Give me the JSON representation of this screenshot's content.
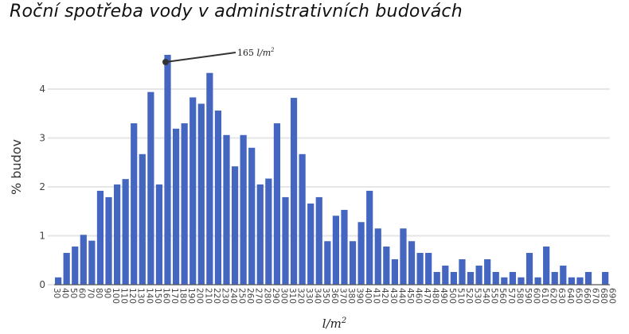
{
  "chart_data": {
    "type": "bar",
    "title": "Roční spotřeba vody v administrativních budovách",
    "xlabel": "l/m²",
    "ylabel": "% budov",
    "ylim": [
      0,
      4.8
    ],
    "yticks": [
      0,
      1,
      2,
      3,
      4
    ],
    "grid": true,
    "bar_color": "#4466c0",
    "categories": [
      "30",
      "40",
      "50",
      "60",
      "70",
      "80",
      "90",
      "100",
      "110",
      "120",
      "130",
      "140",
      "150",
      "160",
      "170",
      "180",
      "190",
      "200",
      "210",
      "220",
      "230",
      "240",
      "250",
      "260",
      "270",
      "280",
      "290",
      "300",
      "310",
      "320",
      "330",
      "340",
      "350",
      "360",
      "370",
      "380",
      "390",
      "400",
      "410",
      "420",
      "430",
      "440",
      "450",
      "460",
      "470",
      "480",
      "490",
      "500",
      "510",
      "520",
      "530",
      "540",
      "550",
      "560",
      "570",
      "580",
      "590",
      "600",
      "610",
      "620",
      "630",
      "640",
      "650",
      "660",
      "670",
      "680",
      "690"
    ],
    "values": [
      0.15,
      0.65,
      0.78,
      1.02,
      0.9,
      1.92,
      1.79,
      2.05,
      2.16,
      3.3,
      2.67,
      3.94,
      2.05,
      4.7,
      3.19,
      3.3,
      3.83,
      3.7,
      4.33,
      3.56,
      3.06,
      2.42,
      3.06,
      2.8,
      2.05,
      2.17,
      3.3,
      1.79,
      3.82,
      2.67,
      1.66,
      1.79,
      0.89,
      1.41,
      1.53,
      0.89,
      1.28,
      1.92,
      1.15,
      0.78,
      0.52,
      1.15,
      0.89,
      0.65,
      0.65,
      0.26,
      0.39,
      0.26,
      0.52,
      0.26,
      0.39,
      0.52,
      0.26,
      0.15,
      0.26,
      0.15,
      0.65,
      0.15,
      0.78,
      0.26,
      0.39,
      0.15,
      0.15,
      0.26,
      0,
      0.26,
      0
    ],
    "annotations": [
      {
        "text": "165 l/m²",
        "number": "165",
        "unit": "l/m",
        "sup": "2",
        "target_category": "160"
      }
    ]
  }
}
